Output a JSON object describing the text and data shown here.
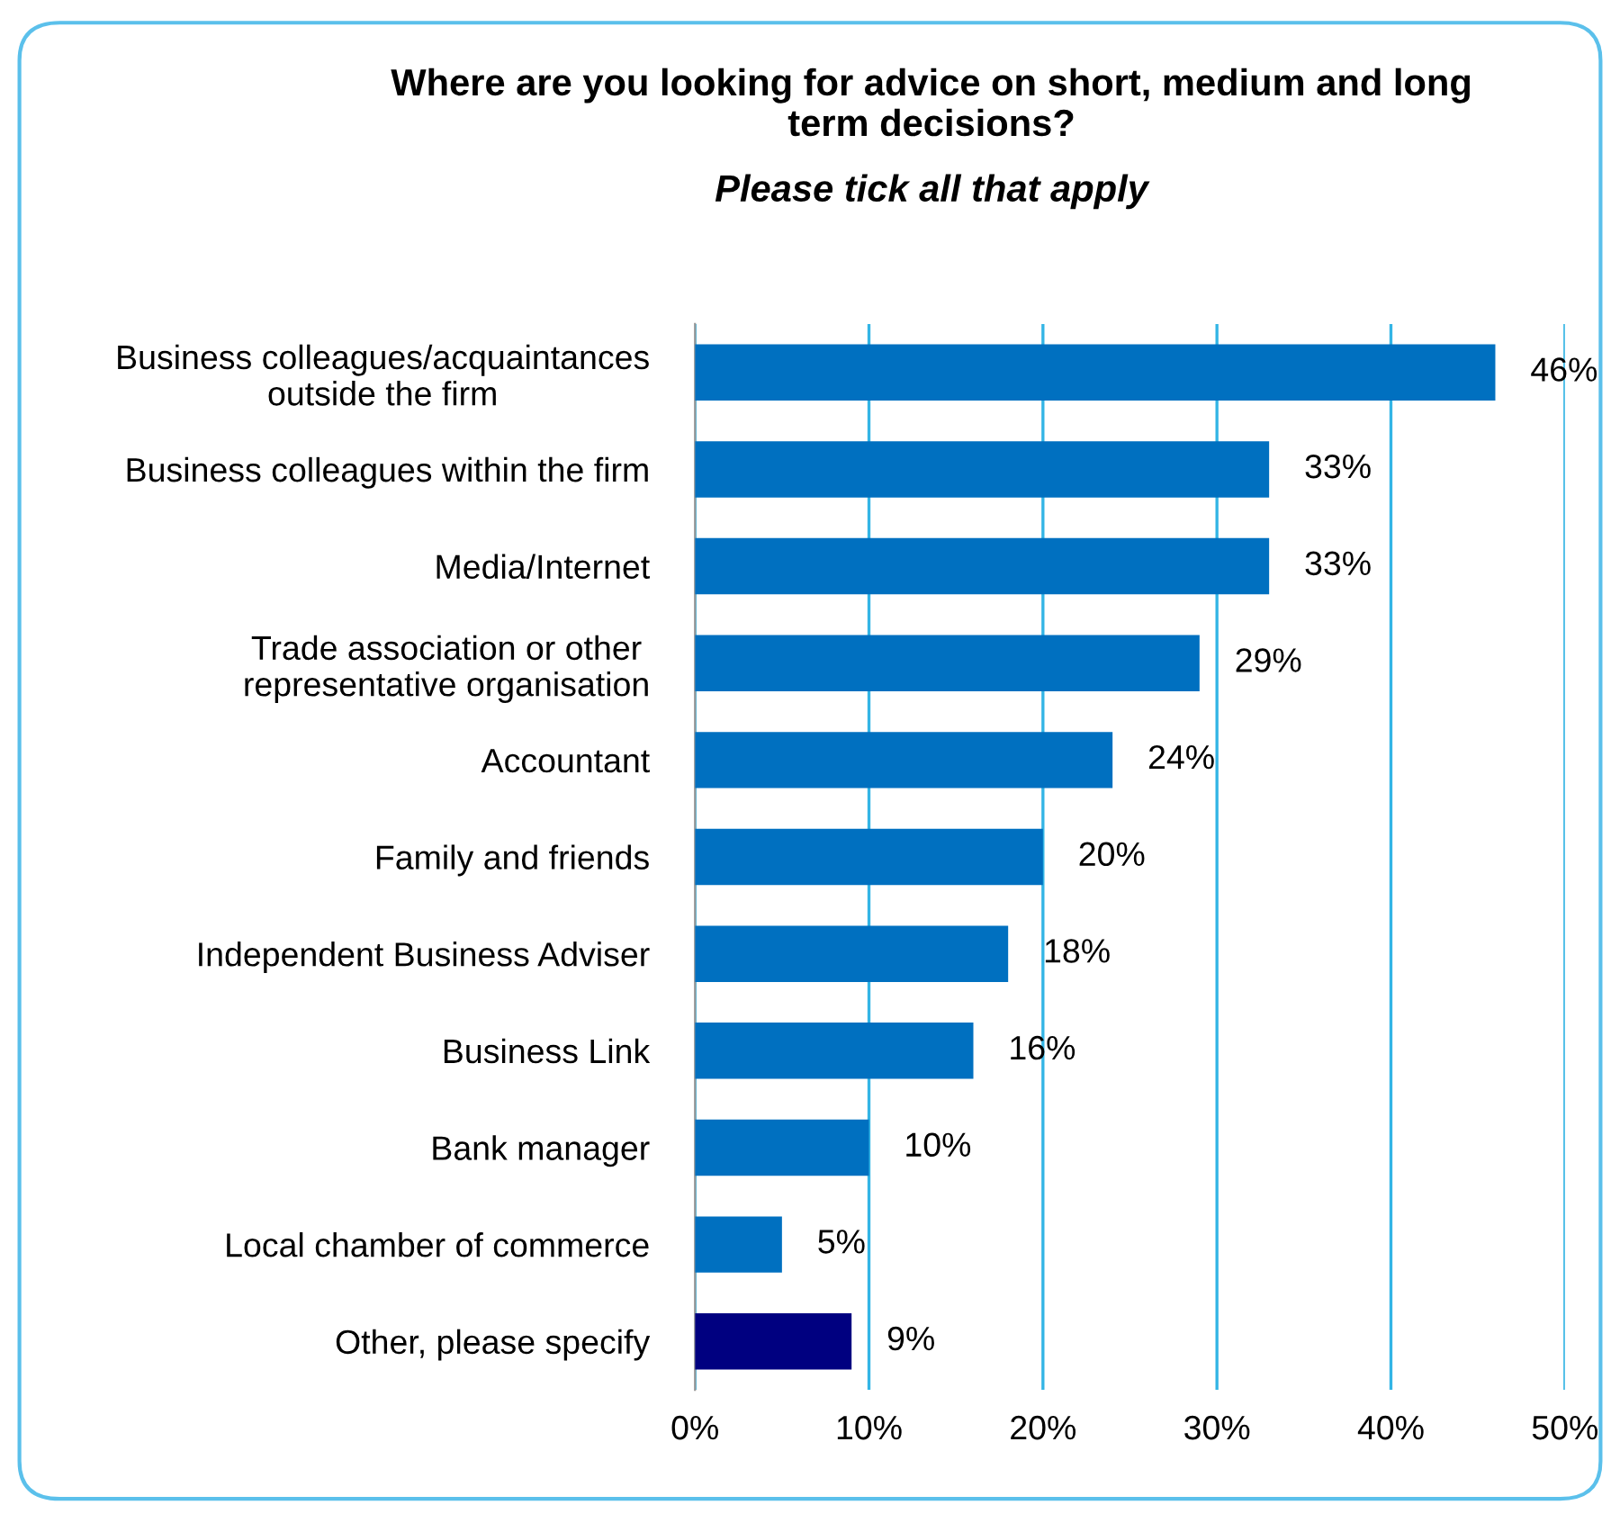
{
  "chart_data": {
    "type": "bar",
    "orientation": "horizontal",
    "title": "Where are you looking for advice on short, medium and long\nterm decisions?",
    "subtitle": "Please tick all that apply",
    "categories": [
      "Business colleagues/acquaintances\noutside the firm",
      "Business colleagues within the firm",
      "Media/Internet",
      "Trade association or other\nrepresentative organisation",
      "Accountant",
      "Family and friends",
      "Independent Business Adviser",
      "Business Link",
      "Bank manager",
      "Local chamber of commerce",
      "Other, please specify"
    ],
    "values": [
      46,
      33,
      33,
      29,
      24,
      20,
      18,
      16,
      10,
      5,
      9
    ],
    "colors": [
      "#0070c0",
      "#0070c0",
      "#0070c0",
      "#0070c0",
      "#0070c0",
      "#0070c0",
      "#0070c0",
      "#0070c0",
      "#0070c0",
      "#0070c0",
      "#000080"
    ],
    "value_labels": [
      "46%",
      "33%",
      "33%",
      "29%",
      "24%",
      "20%",
      "18%",
      "16%",
      "10%",
      "5%",
      "9%"
    ],
    "xlim": [
      0,
      50
    ],
    "xticks": [
      {
        "value": 0,
        "label": "0%"
      },
      {
        "value": 10,
        "label": "10%"
      },
      {
        "value": 20,
        "label": "20%"
      },
      {
        "value": 30,
        "label": "30%"
      },
      {
        "value": 40,
        "label": "40%"
      },
      {
        "value": 50,
        "label": "50%"
      }
    ],
    "grid": "x",
    "legend": false
  }
}
